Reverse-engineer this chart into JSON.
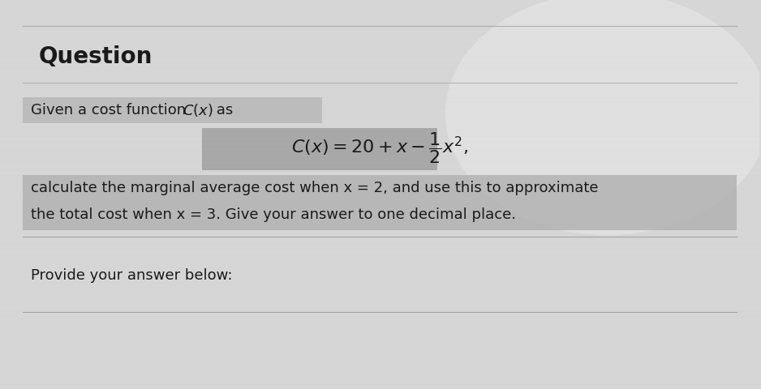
{
  "title": "Question",
  "line1": "Given a cost function C(x) as",
  "body_line1": "calculate the marginal average cost when x = 2, and use this to approximate",
  "body_line2": "the total cost when x = 3. Give your answer to one decimal place.",
  "footer": "Provide your answer below:",
  "bg_color": "#d8d8d8",
  "text_color": "#1a1a1a",
  "highlight_given": "#b8b8b8",
  "highlight_formula": "#999999",
  "highlight_body": "#b0b0b0",
  "separator_color": "#aaaaaa",
  "title_fontsize": 20,
  "body_fontsize": 13,
  "formula_fontsize": 15
}
